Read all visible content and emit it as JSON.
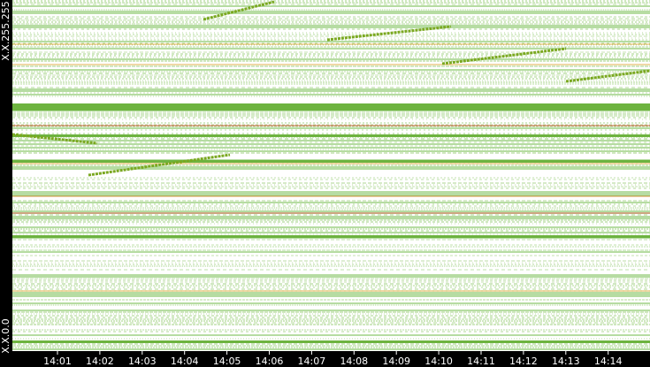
{
  "y_axis": {
    "top_label": "X.X.255.255",
    "bottom_label": "X.X.0.0"
  },
  "x_axis": {
    "labels": [
      "14:01",
      "14:02",
      "14:03",
      "14:04",
      "14:05",
      "14:06",
      "14:07",
      "14:08",
      "14:09",
      "14:10",
      "14:11",
      "14:12",
      "14:13",
      "14:14"
    ]
  }
}
